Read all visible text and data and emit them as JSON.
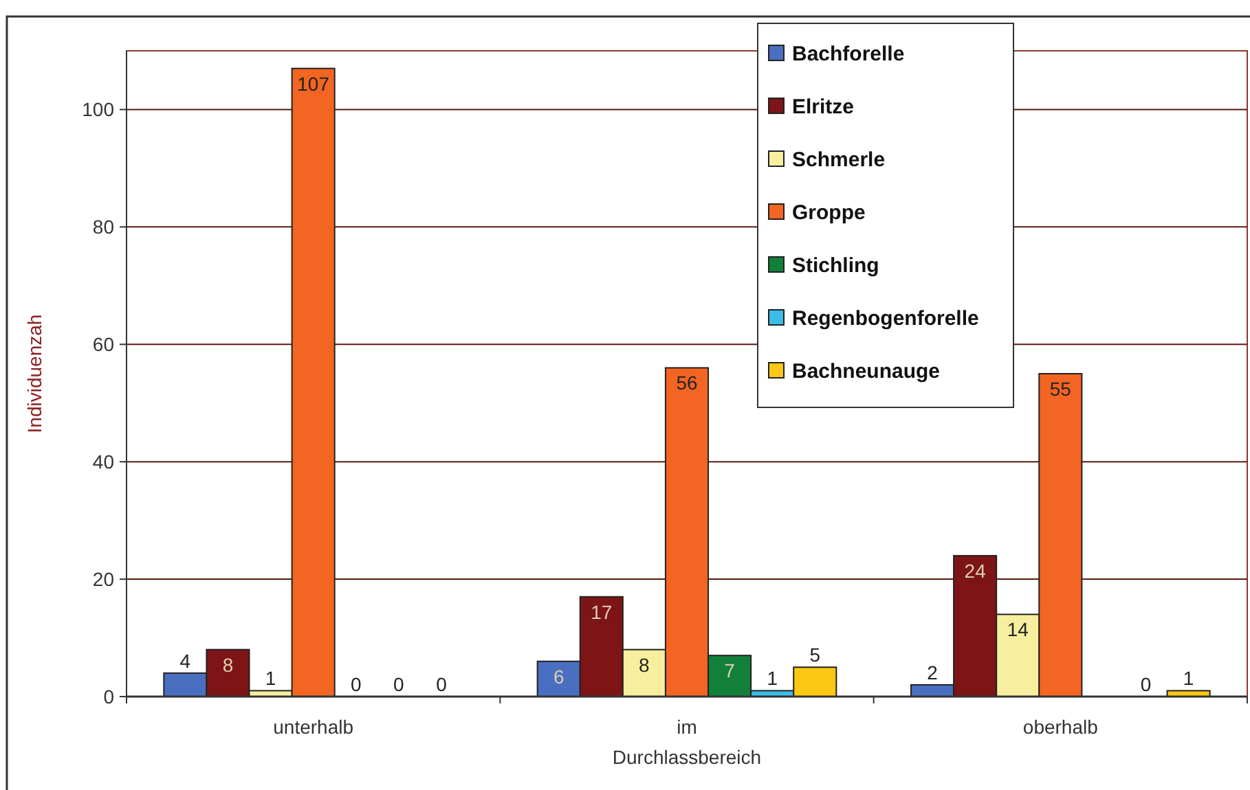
{
  "chart_data": {
    "type": "bar",
    "xlabel": "Durchlassbereich",
    "ylabel": "Individuenzah",
    "categories": [
      "unterhalb",
      "im",
      "oberhalb"
    ],
    "series": [
      {
        "name": "Bachforelle",
        "color": "#4a6fc0",
        "values": [
          4,
          6,
          2
        ]
      },
      {
        "name": "Elritze",
        "color": "#7d1416",
        "values": [
          8,
          17,
          24
        ]
      },
      {
        "name": "Schmerle",
        "color": "#f7ef9e",
        "values": [
          1,
          8,
          14
        ]
      },
      {
        "name": "Groppe",
        "color": "#f26522",
        "values": [
          107,
          56,
          55
        ]
      },
      {
        "name": "Stichling",
        "color": "#12803a",
        "values": [
          0,
          7,
          null
        ]
      },
      {
        "name": "Regenbogenforelle",
        "color": "#3cbde8",
        "values": [
          0,
          1,
          0
        ]
      },
      {
        "name": "Bachneunauge",
        "color": "#fcc813",
        "values": [
          0,
          5,
          1
        ]
      }
    ],
    "ylim": [
      0,
      110
    ],
    "yticks": [
      0,
      20,
      40,
      60,
      80,
      100
    ],
    "grid": "y",
    "legend": "top right",
    "data_labels": true
  }
}
